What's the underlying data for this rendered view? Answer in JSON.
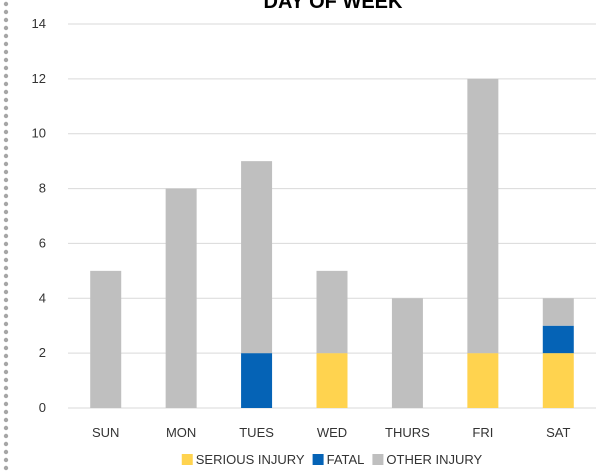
{
  "chart_data": {
    "type": "bar",
    "stacked": true,
    "title": "DAY OF WEEK",
    "categories": [
      "SUN",
      "MON",
      "TUES",
      "WED",
      "THURS",
      "FRI",
      "SAT"
    ],
    "series": [
      {
        "name": "SERIOUS INJURY",
        "color": "#FFD34F",
        "values": [
          0,
          0,
          0,
          2,
          0,
          2,
          2
        ]
      },
      {
        "name": "FATAL",
        "color": "#0563B6",
        "values": [
          0,
          0,
          2,
          0,
          0,
          0,
          1
        ]
      },
      {
        "name": "OTHER INJURY",
        "color": "#BFBFBF",
        "values": [
          5,
          8,
          7,
          3,
          4,
          10,
          1
        ]
      }
    ],
    "ylim": [
      0,
      14
    ],
    "yticks": [
      0,
      2,
      4,
      6,
      8,
      10,
      12,
      14
    ],
    "grid": true,
    "legend_position": "bottom"
  }
}
